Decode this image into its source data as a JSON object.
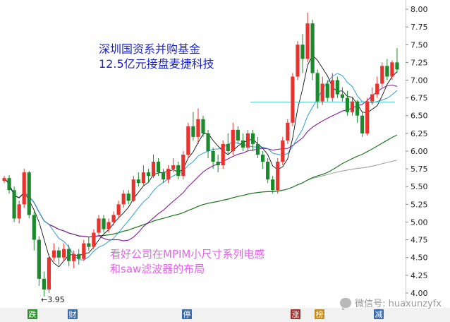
{
  "chart_data": {
    "type": "candlestick",
    "y_ticks": [
      "8.00",
      "7.75",
      "7.50",
      "7.25",
      "7.00",
      "6.75",
      "6.50",
      "6.25",
      "6.00",
      "5.75",
      "5.50",
      "5.25",
      "5.00",
      "4.75",
      "4.50",
      "4.25",
      "4.00"
    ],
    "ylim": [
      3.85,
      8.05
    ],
    "grid": false,
    "min_marker": {
      "label": "←3.95",
      "value": 3.95
    },
    "annotations": [
      {
        "lines": [
          "深圳国资系并购基金",
          "12.5亿元接盘麦捷科技"
        ]
      },
      {
        "lines": [
          "看好公司在MPIM小尺寸系列电感",
          "和saw滤波器的布局"
        ]
      }
    ],
    "event_markers": [
      {
        "label": "跌",
        "color": "#2f8f2f"
      },
      {
        "label": "财",
        "color": "#3b6aa8"
      },
      {
        "label": "停",
        "color": "#3b6aa8"
      },
      {
        "label": "涨",
        "color": "#a03030"
      },
      {
        "label": "榜",
        "color": "#c48a1a"
      },
      {
        "label": "减",
        "color": "#3b6aa8"
      }
    ],
    "watermark": "微信号: huaxunzyfx",
    "colors": {
      "up": "#e8322e",
      "down": "#1c8a2c",
      "ma5": "#111111",
      "ma10": "#2a9fd6",
      "ma20": "#8a1a9a",
      "ma60": "#1f7a1f",
      "ma120": "#9a9a9a",
      "level": "#46c8c8"
    },
    "candles": [
      [
        5.58,
        5.62,
        5.65,
        5.55
      ],
      [
        5.62,
        5.45,
        5.66,
        5.4
      ],
      [
        5.45,
        5.05,
        5.5,
        5.0
      ],
      [
        5.05,
        5.25,
        5.3,
        4.98
      ],
      [
        5.25,
        5.7,
        5.75,
        5.2
      ],
      [
        5.7,
        5.1,
        5.72,
        5.05
      ],
      [
        5.1,
        4.75,
        5.15,
        4.6
      ],
      [
        4.75,
        4.2,
        4.8,
        4.1
      ],
      [
        4.2,
        4.05,
        4.3,
        3.95
      ],
      [
        4.05,
        4.5,
        4.55,
        4.0
      ],
      [
        4.5,
        4.6,
        4.7,
        4.45
      ],
      [
        4.6,
        4.5,
        4.65,
        4.4
      ],
      [
        4.5,
        4.62,
        4.7,
        4.45
      ],
      [
        4.62,
        4.45,
        4.68,
        4.38
      ],
      [
        4.45,
        4.55,
        4.6,
        4.35
      ],
      [
        4.55,
        4.48,
        4.62,
        4.4
      ],
      [
        4.48,
        4.7,
        4.75,
        4.45
      ],
      [
        4.7,
        4.65,
        4.78,
        4.6
      ],
      [
        4.65,
        4.85,
        4.9,
        4.62
      ],
      [
        4.85,
        5.05,
        5.1,
        4.8
      ],
      [
        5.05,
        4.9,
        5.1,
        4.85
      ],
      [
        4.9,
        5.0,
        5.05,
        4.85
      ],
      [
        5.0,
        5.1,
        5.15,
        4.95
      ],
      [
        5.1,
        5.25,
        5.3,
        5.05
      ],
      [
        5.25,
        5.4,
        5.45,
        5.2
      ],
      [
        5.4,
        5.3,
        5.45,
        5.25
      ],
      [
        5.3,
        5.6,
        5.65,
        5.28
      ],
      [
        5.6,
        5.55,
        5.7,
        5.5
      ],
      [
        5.55,
        5.7,
        5.8,
        5.52
      ],
      [
        5.7,
        5.65,
        5.75,
        5.55
      ],
      [
        5.65,
        5.85,
        5.95,
        5.62
      ],
      [
        5.85,
        5.7,
        5.9,
        5.65
      ],
      [
        5.7,
        5.6,
        5.75,
        5.55
      ],
      [
        5.6,
        5.75,
        5.8,
        5.55
      ],
      [
        5.75,
        5.8,
        5.9,
        5.7
      ],
      [
        5.8,
        5.65,
        5.85,
        5.6
      ],
      [
        5.65,
        5.95,
        6.0,
        5.6
      ],
      [
        5.95,
        6.35,
        6.4,
        5.9
      ],
      [
        6.35,
        6.2,
        6.55,
        6.15
      ],
      [
        6.2,
        6.45,
        6.6,
        6.1
      ],
      [
        6.45,
        6.25,
        6.5,
        6.2
      ],
      [
        6.25,
        6.0,
        6.3,
        5.9
      ],
      [
        6.0,
        5.85,
        6.05,
        5.75
      ],
      [
        5.85,
        5.8,
        5.95,
        5.7
      ],
      [
        5.8,
        6.1,
        6.15,
        5.75
      ],
      [
        6.1,
        6.0,
        6.25,
        5.95
      ],
      [
        6.0,
        6.3,
        6.4,
        5.95
      ],
      [
        6.3,
        6.15,
        6.35,
        6.1
      ],
      [
        6.15,
        6.05,
        6.25,
        6.0
      ],
      [
        6.05,
        6.25,
        6.3,
        6.0
      ],
      [
        6.25,
        6.1,
        6.3,
        6.0
      ],
      [
        6.1,
        5.95,
        6.2,
        5.9
      ],
      [
        5.95,
        5.85,
        6.0,
        5.75
      ],
      [
        5.85,
        5.6,
        5.9,
        5.55
      ],
      [
        5.6,
        5.45,
        5.65,
        5.4
      ],
      [
        5.45,
        5.85,
        5.9,
        5.4
      ],
      [
        5.85,
        6.15,
        6.2,
        5.8
      ],
      [
        6.15,
        6.4,
        6.45,
        6.1
      ],
      [
        6.4,
        7.05,
        7.1,
        6.35
      ],
      [
        7.05,
        7.5,
        7.55,
        7.0
      ],
      [
        7.5,
        7.3,
        7.65,
        7.1
      ],
      [
        7.3,
        7.8,
        7.95,
        7.25
      ],
      [
        7.8,
        7.1,
        7.85,
        7.0
      ],
      [
        7.1,
        6.7,
        7.15,
        6.6
      ],
      [
        6.7,
        6.95,
        7.05,
        6.65
      ],
      [
        6.95,
        6.75,
        7.0,
        6.7
      ],
      [
        6.75,
        7.0,
        7.1,
        6.7
      ],
      [
        7.0,
        6.8,
        7.05,
        6.75
      ],
      [
        6.8,
        6.75,
        6.9,
        6.7
      ],
      [
        6.75,
        6.55,
        6.85,
        6.5
      ],
      [
        6.55,
        6.7,
        6.75,
        6.5
      ],
      [
        6.7,
        6.5,
        6.72,
        6.4
      ],
      [
        6.5,
        6.25,
        6.55,
        6.2
      ],
      [
        6.25,
        6.7,
        6.75,
        6.22
      ],
      [
        6.7,
        6.8,
        6.9,
        6.65
      ],
      [
        6.8,
        6.95,
        7.05,
        6.75
      ],
      [
        6.95,
        7.2,
        7.25,
        6.9
      ],
      [
        7.2,
        7.05,
        7.3,
        7.0
      ],
      [
        7.05,
        7.25,
        7.28,
        7.0
      ],
      [
        7.25,
        7.15,
        7.45,
        7.1
      ]
    ]
  }
}
